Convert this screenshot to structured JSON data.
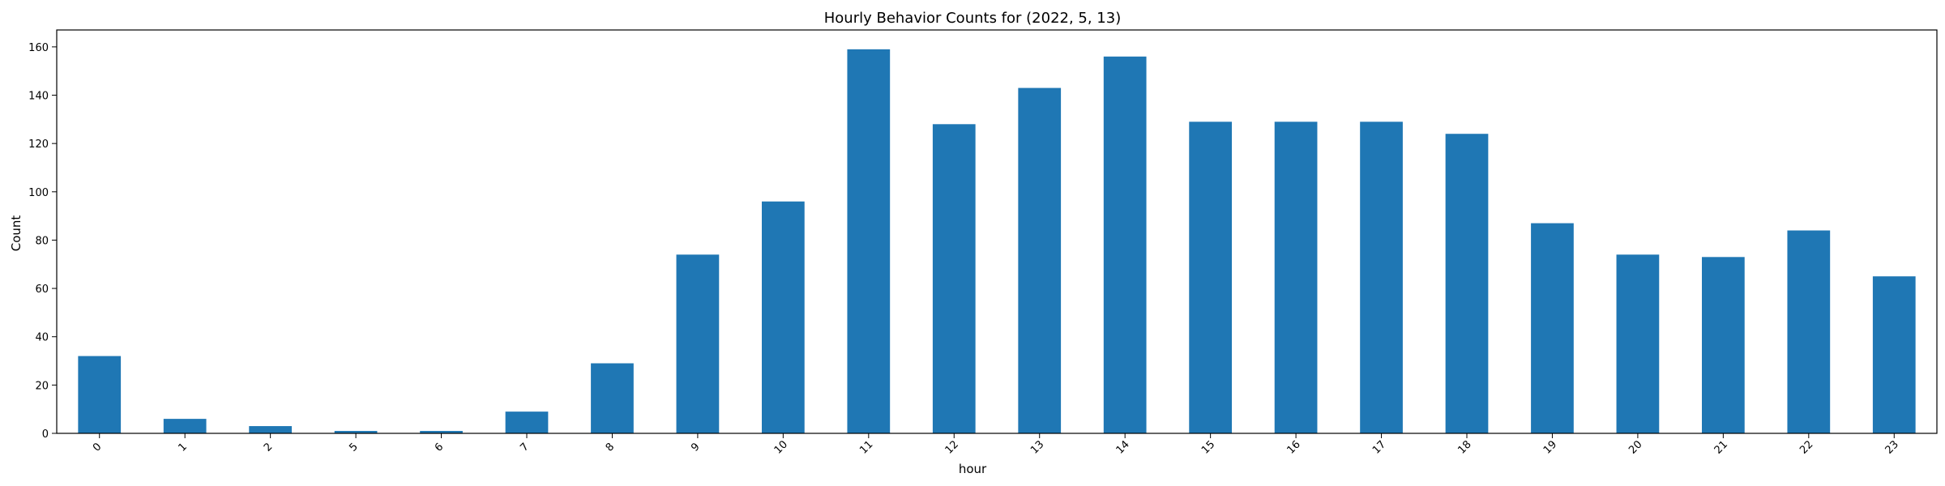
{
  "chart_data": {
    "type": "bar",
    "title": "Hourly Behavior Counts for (2022, 5, 13)",
    "xlabel": "hour",
    "ylabel": "Count",
    "categories": [
      "0",
      "1",
      "2",
      "5",
      "6",
      "7",
      "8",
      "9",
      "10",
      "11",
      "12",
      "13",
      "14",
      "15",
      "16",
      "17",
      "18",
      "19",
      "20",
      "21",
      "22",
      "23"
    ],
    "values": [
      32,
      6,
      3,
      1,
      1,
      9,
      29,
      74,
      96,
      159,
      128,
      143,
      156,
      129,
      129,
      129,
      124,
      87,
      74,
      73,
      84,
      65
    ],
    "ylim": [
      0,
      167
    ],
    "yticks": [
      0,
      20,
      40,
      60,
      80,
      100,
      120,
      140,
      160
    ],
    "bar_color": "#1f77b4",
    "grid": false,
    "legend": "none"
  }
}
